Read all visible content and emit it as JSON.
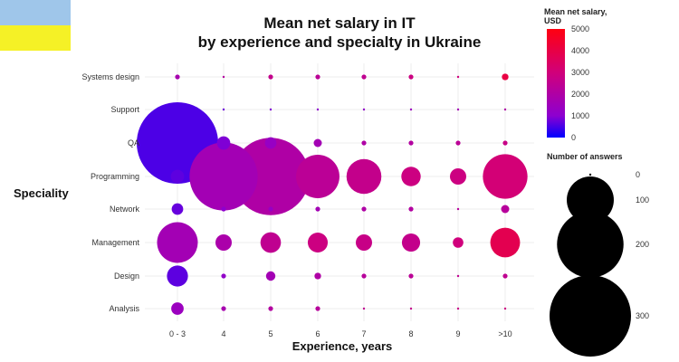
{
  "chart_data": {
    "type": "scatter",
    "title": [
      "Mean net salary in IT",
      "by experience and specialty in Ukraine"
    ],
    "xlabel": "Experience, years",
    "ylabel": "Speciality",
    "x_categories": [
      "0 - 3",
      "4",
      "5",
      "6",
      "7",
      "8",
      "9",
      ">10"
    ],
    "y_categories": [
      "Analysis",
      "Design",
      "Management",
      "Network",
      "Programming",
      "QA",
      "Support",
      "Systems design"
    ],
    "color_legend": {
      "title": "Mean net salary, USD",
      "ticks": [
        0,
        1000,
        2000,
        3000,
        4000,
        5000
      ],
      "range": [
        0,
        5000
      ],
      "colors": [
        "#0000ff",
        "#8d00d0",
        "#d1007a",
        "#ff0010"
      ]
    },
    "size_legend": {
      "title": "Number of answers",
      "values": [
        0,
        100,
        200,
        300
      ]
    },
    "points": [
      {
        "x": "0 - 3",
        "y": "Systems design",
        "answers": 1,
        "salary": 2300
      },
      {
        "x": "4",
        "y": "Systems design",
        "answers": 0,
        "salary": 2600
      },
      {
        "x": "5",
        "y": "Systems design",
        "answers": 1,
        "salary": 3000
      },
      {
        "x": "6",
        "y": "Systems design",
        "answers": 1,
        "salary": 2800
      },
      {
        "x": "7",
        "y": "Systems design",
        "answers": 1,
        "salary": 2900
      },
      {
        "x": "8",
        "y": "Systems design",
        "answers": 1,
        "salary": 3200
      },
      {
        "x": "9",
        "y": "Systems design",
        "answers": 0,
        "salary": 3300
      },
      {
        "x": ">10",
        "y": "Systems design",
        "answers": 2,
        "salary": 4200
      },
      {
        "x": "0 - 3",
        "y": "Support",
        "answers": 0,
        "salary": 900
      },
      {
        "x": "4",
        "y": "Support",
        "answers": 0,
        "salary": 1300
      },
      {
        "x": "5",
        "y": "Support",
        "answers": 0,
        "salary": 1500
      },
      {
        "x": "6",
        "y": "Support",
        "answers": 0,
        "salary": 1700
      },
      {
        "x": "7",
        "y": "Support",
        "answers": 0,
        "salary": 1800
      },
      {
        "x": "8",
        "y": "Support",
        "answers": 0,
        "salary": 2000
      },
      {
        "x": "9",
        "y": "Support",
        "answers": 0,
        "salary": 2200
      },
      {
        "x": ">10",
        "y": "Support",
        "answers": 0,
        "salary": 2500
      },
      {
        "x": "0 - 3",
        "y": "QA",
        "answers": 300,
        "salary": 900
      },
      {
        "x": "4",
        "y": "QA",
        "answers": 8,
        "salary": 1500
      },
      {
        "x": "5",
        "y": "QA",
        "answers": 6,
        "salary": 1900
      },
      {
        "x": "6",
        "y": "QA",
        "answers": 3,
        "salary": 2200
      },
      {
        "x": "7",
        "y": "QA",
        "answers": 1,
        "salary": 2500
      },
      {
        "x": "8",
        "y": "QA",
        "answers": 1,
        "salary": 2600
      },
      {
        "x": "9",
        "y": "QA",
        "answers": 1,
        "salary": 2800
      },
      {
        "x": ">10",
        "y": "QA",
        "answers": 1,
        "salary": 3100
      },
      {
        "x": "0 - 3",
        "y": "Programming",
        "answers": 8,
        "salary": 1100
      },
      {
        "x": "4",
        "y": "Programming",
        "answers": 210,
        "salary": 2200
      },
      {
        "x": "5",
        "y": "Programming",
        "answers": 270,
        "salary": 2500
      },
      {
        "x": "6",
        "y": "Programming",
        "answers": 85,
        "salary": 2800
      },
      {
        "x": "7",
        "y": "Programming",
        "answers": 55,
        "salary": 3000
      },
      {
        "x": "8",
        "y": "Programming",
        "answers": 17,
        "salary": 3200
      },
      {
        "x": "9",
        "y": "Programming",
        "answers": 12,
        "salary": 3200
      },
      {
        "x": ">10",
        "y": "Programming",
        "answers": 90,
        "salary": 3400
      },
      {
        "x": "0 - 3",
        "y": "Network",
        "answers": 6,
        "salary": 1200
      },
      {
        "x": "4",
        "y": "Network",
        "answers": 1,
        "salary": 1700
      },
      {
        "x": "5",
        "y": "Network",
        "answers": 1,
        "salary": 1900
      },
      {
        "x": "6",
        "y": "Network",
        "answers": 1,
        "salary": 2200
      },
      {
        "x": "7",
        "y": "Network",
        "answers": 1,
        "salary": 2500
      },
      {
        "x": "8",
        "y": "Network",
        "answers": 1,
        "salary": 2600
      },
      {
        "x": "9",
        "y": "Network",
        "answers": 0,
        "salary": 2700
      },
      {
        "x": ">10",
        "y": "Network",
        "answers": 3,
        "salary": 2700
      },
      {
        "x": "0 - 3",
        "y": "Management",
        "answers": 75,
        "salary": 2200
      },
      {
        "x": "4",
        "y": "Management",
        "answers": 12,
        "salary": 2400
      },
      {
        "x": "5",
        "y": "Management",
        "answers": 19,
        "salary": 2900
      },
      {
        "x": "6",
        "y": "Management",
        "answers": 18,
        "salary": 3200
      },
      {
        "x": "7",
        "y": "Management",
        "answers": 12,
        "salary": 3100
      },
      {
        "x": "8",
        "y": "Management",
        "answers": 15,
        "salary": 3000
      },
      {
        "x": "9",
        "y": "Management",
        "answers": 5,
        "salary": 3300
      },
      {
        "x": ">10",
        "y": "Management",
        "answers": 40,
        "salary": 4000
      },
      {
        "x": "0 - 3",
        "y": "Design",
        "answers": 20,
        "salary": 1100
      },
      {
        "x": "4",
        "y": "Design",
        "answers": 1,
        "salary": 1800
      },
      {
        "x": "5",
        "y": "Design",
        "answers": 4,
        "salary": 2200
      },
      {
        "x": "6",
        "y": "Design",
        "answers": 2,
        "salary": 2500
      },
      {
        "x": "7",
        "y": "Design",
        "answers": 1,
        "salary": 2700
      },
      {
        "x": "8",
        "y": "Design",
        "answers": 1,
        "salary": 2800
      },
      {
        "x": "9",
        "y": "Design",
        "answers": 0,
        "salary": 2900
      },
      {
        "x": ">10",
        "y": "Design",
        "answers": 1,
        "salary": 2900
      },
      {
        "x": "0 - 3",
        "y": "Analysis",
        "answers": 7,
        "salary": 2000
      },
      {
        "x": "4",
        "y": "Analysis",
        "answers": 1,
        "salary": 2300
      },
      {
        "x": "5",
        "y": "Analysis",
        "answers": 1,
        "salary": 2600
      },
      {
        "x": "6",
        "y": "Analysis",
        "answers": 1,
        "salary": 2700
      },
      {
        "x": "7",
        "y": "Analysis",
        "answers": 0,
        "salary": 2900
      },
      {
        "x": "8",
        "y": "Analysis",
        "answers": 0,
        "salary": 3000
      },
      {
        "x": "9",
        "y": "Analysis",
        "answers": 0,
        "salary": 3100
      },
      {
        "x": ">10",
        "y": "Analysis",
        "answers": 0,
        "salary": 3200
      }
    ],
    "grid": true,
    "legend_position": "right"
  },
  "decor": {
    "flag_colors": [
      "#9fc6ea",
      "#f5f126"
    ]
  }
}
